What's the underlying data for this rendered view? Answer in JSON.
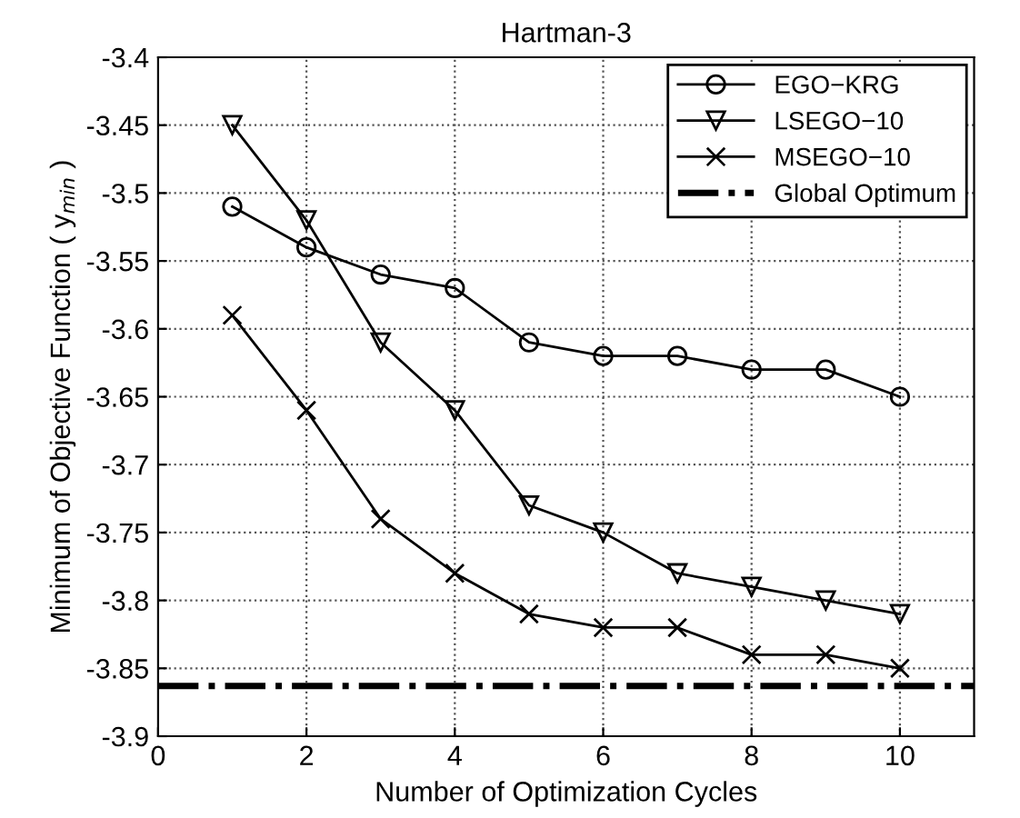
{
  "chart_data": {
    "type": "line",
    "title": "Hartman-3",
    "xlabel": "Number of Optimization Cycles",
    "ylabel": "Minimum of Objective Function ( y$_{min}$ )",
    "x": [
      1,
      2,
      3,
      4,
      5,
      6,
      7,
      8,
      9,
      10
    ],
    "series": [
      {
        "name": "EGO−KRG",
        "color": "#000000",
        "marker": "circle",
        "values": [
          -3.51,
          -3.54,
          -3.56,
          -3.57,
          -3.61,
          -3.62,
          -3.62,
          -3.63,
          -3.63,
          -3.65
        ]
      },
      {
        "name": "LSEGO−10",
        "color": "#000000",
        "marker": "triangle",
        "values": [
          -3.45,
          -3.52,
          -3.61,
          -3.66,
          -3.73,
          -3.75,
          -3.78,
          -3.79,
          -3.8,
          -3.81
        ]
      },
      {
        "name": "MSEGO−10",
        "color": "#000000",
        "marker": "cross",
        "values": [
          -3.59,
          -3.66,
          -3.74,
          -3.78,
          -3.81,
          -3.82,
          -3.82,
          -3.84,
          -3.84,
          -3.85
        ]
      }
    ],
    "ref_lines": [
      {
        "axis": "y",
        "value": -3.863,
        "label": "Global Optimum",
        "color": "#000000",
        "line_style": "dashdot"
      }
    ],
    "xlim": [
      0,
      11
    ],
    "xticks": [
      0,
      2,
      4,
      6,
      8,
      10
    ],
    "ylim": [
      -3.9,
      -3.4
    ],
    "yticks": [
      -3.9,
      -3.85,
      -3.8,
      -3.75,
      -3.7,
      -3.65,
      -3.6,
      -3.55,
      -3.5,
      -3.45,
      -3.4
    ],
    "grid": true,
    "legend": "top right"
  }
}
